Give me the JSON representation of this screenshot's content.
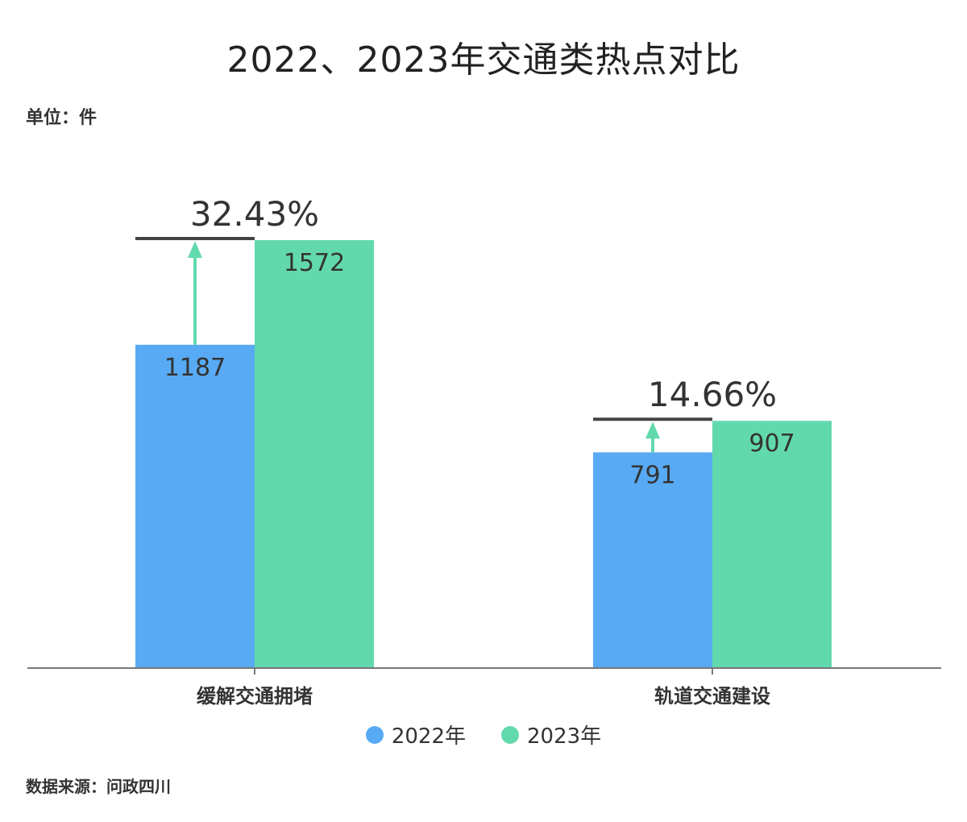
{
  "title": "2022、2023年交通类热点对比",
  "unit_label": "单位：件",
  "source_label": "数据来源：问政四川",
  "colors": {
    "series_2022": "#58aaf4",
    "series_2023": "#62d9ad",
    "axis": "#777777",
    "growth_line": "#444444",
    "arrow": "#62d9ad"
  },
  "chart_data": {
    "type": "bar",
    "title": "2022、2023年交通类热点对比",
    "ylabel": "",
    "xlabel": "",
    "categories": [
      "缓解交通拥堵",
      "轨道交通建设"
    ],
    "series": [
      {
        "name": "2022年",
        "values": [
          1187,
          791
        ]
      },
      {
        "name": "2023年",
        "values": [
          1572,
          907
        ]
      }
    ],
    "annotations": [
      "32.43%",
      "14.66%"
    ],
    "ylim": [
      0,
      1572
    ],
    "grid": false,
    "legend_position": "bottom"
  }
}
